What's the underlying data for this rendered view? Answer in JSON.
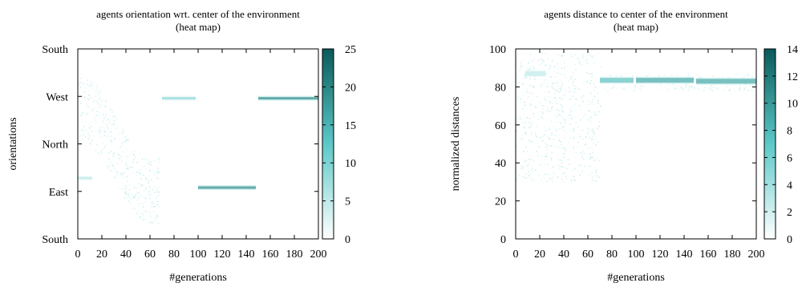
{
  "chart_data": [
    {
      "type": "heatmap",
      "title": "agents orientation wrt. center of the environment",
      "subtitle": "(heat map)",
      "xlabel": "#generations",
      "ylabel": "orientations",
      "xlim": [
        0,
        200
      ],
      "x_ticks": [
        "0",
        "20",
        "40",
        "60",
        "80",
        "100",
        "120",
        "140",
        "160",
        "180",
        "200"
      ],
      "y_tick_labels": [
        "South",
        "East",
        "North",
        "West",
        "South"
      ],
      "colorbar": {
        "range": [
          0,
          25
        ],
        "ticks": [
          "0",
          "5",
          "10",
          "15",
          "20",
          "25"
        ],
        "colors": [
          "#ffffff",
          "#5cc8c8",
          "#0a5a5a"
        ]
      },
      "bands": [
        {
          "x0": 70,
          "x1": 98,
          "y": 2.96,
          "value": 10
        },
        {
          "x0": 100,
          "x1": 148,
          "y": 1.08,
          "value": 22
        },
        {
          "x0": 150,
          "x1": 200,
          "y": 2.96,
          "value": 22
        },
        {
          "x0": 0,
          "x1": 12,
          "y": 1.28,
          "value": 6
        }
      ],
      "grid": false
    },
    {
      "type": "heatmap",
      "title": "agents distance to center of the environment",
      "subtitle": "(heat map)",
      "xlabel": "#generations",
      "ylabel": "normalized distances",
      "xlim": [
        0,
        200
      ],
      "ylim": [
        0,
        100
      ],
      "x_ticks": [
        "0",
        "20",
        "40",
        "60",
        "80",
        "100",
        "120",
        "140",
        "160",
        "180",
        "200"
      ],
      "y_ticks": [
        "0",
        "20",
        "40",
        "60",
        "80",
        "100"
      ],
      "colorbar": {
        "range": [
          0,
          14
        ],
        "ticks": [
          "0",
          "2",
          "4",
          "6",
          "8",
          "10",
          "12",
          "14"
        ],
        "colors": [
          "#ffffff",
          "#5cc8c8",
          "#0a5a5a"
        ]
      },
      "bands": [
        {
          "x0": 70,
          "x1": 98,
          "y": 83.5,
          "value": 8
        },
        {
          "x0": 100,
          "x1": 148,
          "y": 83.5,
          "value": 10
        },
        {
          "x0": 150,
          "x1": 200,
          "y": 83,
          "value": 10
        },
        {
          "x0": 8,
          "x1": 25,
          "y": 87,
          "value": 3
        }
      ],
      "grid": false
    }
  ]
}
